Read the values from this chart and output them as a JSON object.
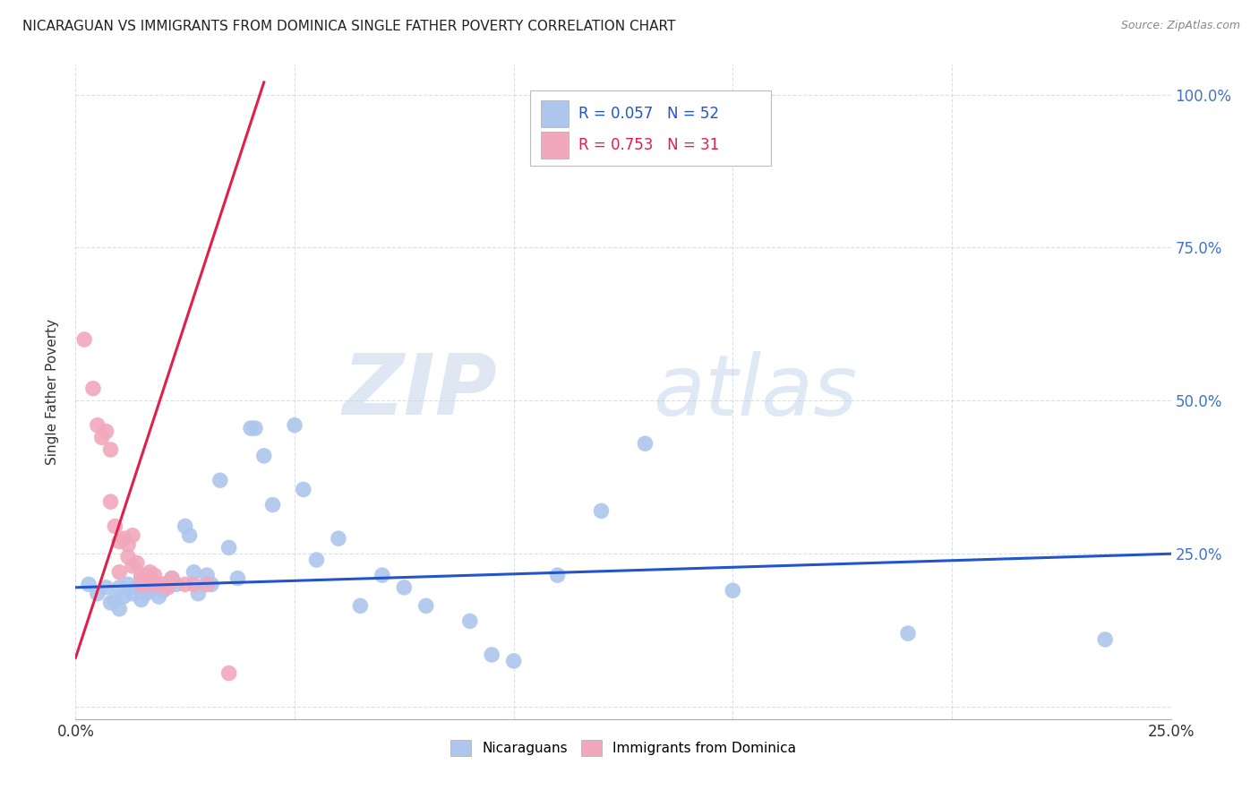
{
  "title": "NICARAGUAN VS IMMIGRANTS FROM DOMINICA SINGLE FATHER POVERTY CORRELATION CHART",
  "source": "Source: ZipAtlas.com",
  "ylabel": "Single Father Poverty",
  "xlim": [
    0,
    0.25
  ],
  "ylim": [
    -0.02,
    1.05
  ],
  "ytick_vals": [
    0.0,
    0.25,
    0.5,
    0.75,
    1.0
  ],
  "ytick_labels": [
    "",
    "25.0%",
    "50.0%",
    "75.0%",
    "100.0%"
  ],
  "xtick_vals": [
    0.0,
    0.05,
    0.1,
    0.15,
    0.2,
    0.25
  ],
  "xtick_labels": [
    "0.0%",
    "",
    "",
    "",
    "",
    "25.0%"
  ],
  "blue_R": "0.057",
  "blue_N": "52",
  "pink_R": "0.753",
  "pink_N": "31",
  "legend_label_blue": "Nicaraguans",
  "legend_label_pink": "Immigrants from Dominica",
  "blue_color": "#adc6ed",
  "pink_color": "#f2a8bc",
  "blue_line_color": "#2255cc",
  "pink_line_color": "#e0204a",
  "watermark_zip": "ZIP",
  "watermark_atlas": "atlas",
  "blue_points_x": [
    0.003,
    0.005,
    0.007,
    0.008,
    0.009,
    0.01,
    0.01,
    0.011,
    0.012,
    0.013,
    0.014,
    0.015,
    0.015,
    0.016,
    0.017,
    0.018,
    0.019,
    0.02,
    0.02,
    0.021,
    0.022,
    0.023,
    0.025,
    0.026,
    0.027,
    0.028,
    0.03,
    0.031,
    0.033,
    0.035,
    0.037,
    0.04,
    0.041,
    0.043,
    0.045,
    0.05,
    0.052,
    0.055,
    0.06,
    0.065,
    0.07,
    0.075,
    0.08,
    0.09,
    0.095,
    0.1,
    0.11,
    0.12,
    0.13,
    0.15,
    0.19,
    0.235
  ],
  "blue_points_y": [
    0.2,
    0.185,
    0.195,
    0.17,
    0.175,
    0.16,
    0.195,
    0.18,
    0.2,
    0.185,
    0.195,
    0.175,
    0.21,
    0.185,
    0.19,
    0.195,
    0.18,
    0.2,
    0.19,
    0.195,
    0.21,
    0.2,
    0.295,
    0.28,
    0.22,
    0.185,
    0.215,
    0.2,
    0.37,
    0.26,
    0.21,
    0.455,
    0.455,
    0.41,
    0.33,
    0.46,
    0.355,
    0.24,
    0.275,
    0.165,
    0.215,
    0.195,
    0.165,
    0.14,
    0.085,
    0.075,
    0.215,
    0.32,
    0.43,
    0.19,
    0.12,
    0.11
  ],
  "pink_points_x": [
    0.002,
    0.004,
    0.005,
    0.006,
    0.007,
    0.008,
    0.008,
    0.009,
    0.01,
    0.01,
    0.011,
    0.012,
    0.012,
    0.013,
    0.013,
    0.014,
    0.015,
    0.015,
    0.016,
    0.016,
    0.017,
    0.018,
    0.018,
    0.019,
    0.02,
    0.021,
    0.022,
    0.025,
    0.027,
    0.03,
    0.035
  ],
  "pink_points_y": [
    0.6,
    0.52,
    0.46,
    0.44,
    0.45,
    0.335,
    0.42,
    0.295,
    0.27,
    0.22,
    0.275,
    0.265,
    0.245,
    0.28,
    0.23,
    0.235,
    0.2,
    0.215,
    0.215,
    0.2,
    0.22,
    0.215,
    0.2,
    0.2,
    0.2,
    0.195,
    0.21,
    0.2,
    0.2,
    0.2,
    0.055
  ],
  "blue_trend_x": [
    0.0,
    0.25
  ],
  "blue_trend_y": [
    0.195,
    0.25
  ],
  "pink_trend_x": [
    0.0,
    0.043
  ],
  "pink_trend_y": [
    0.08,
    1.02
  ]
}
